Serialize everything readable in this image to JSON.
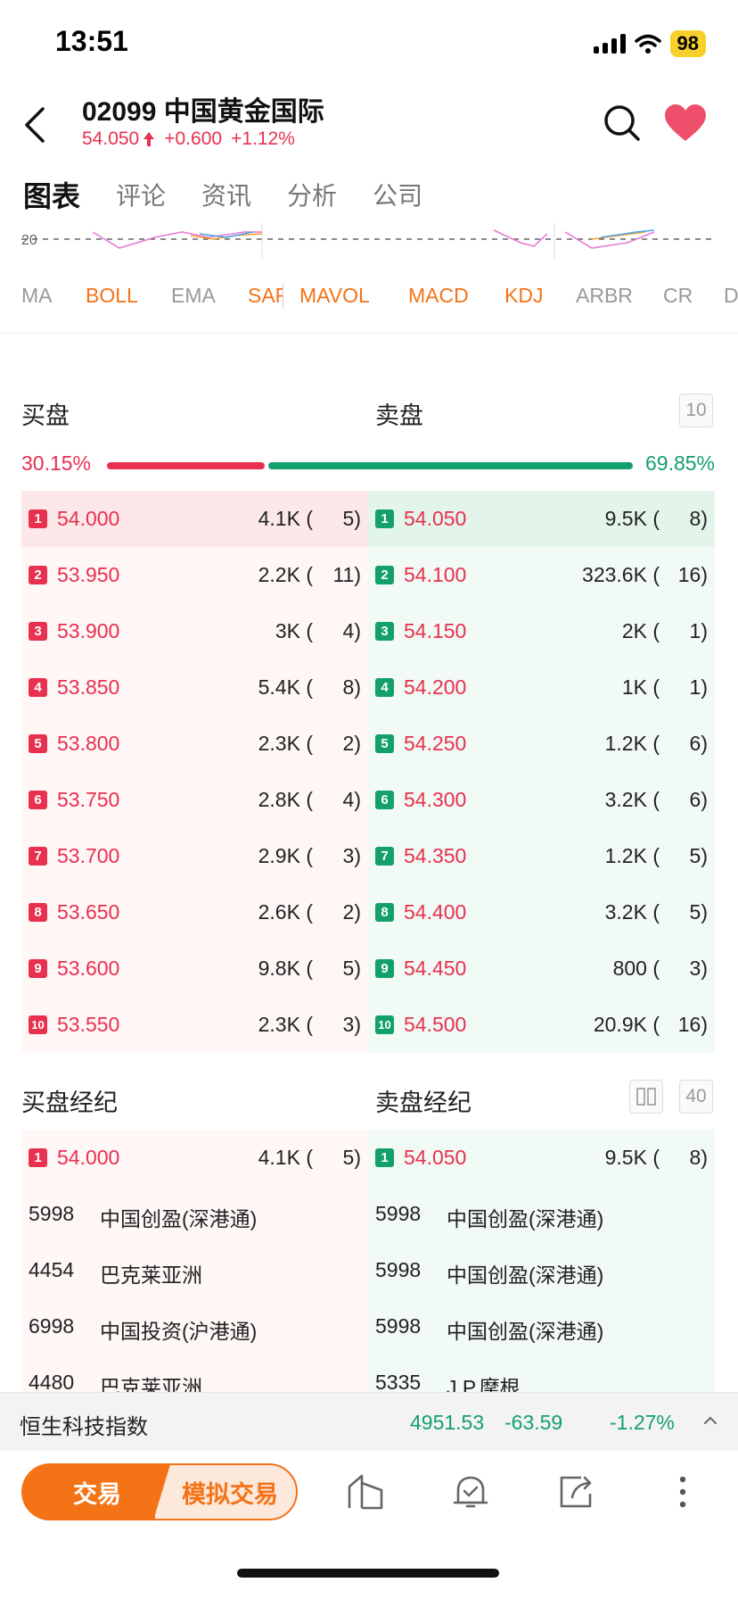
{
  "status": {
    "time": "13:51",
    "battery": "98"
  },
  "header": {
    "title": "02099  中国黄金国际",
    "price": "54.050",
    "change": "+0.600",
    "change_pct": "+1.12%"
  },
  "tabs": [
    "图表",
    "评论",
    "资讯",
    "分析",
    "公司"
  ],
  "chart_strip": {
    "axis_label": "20"
  },
  "indicators": [
    {
      "label": "MA",
      "active": false
    },
    {
      "label": "BOLL",
      "active": true
    },
    {
      "label": "EMA",
      "active": false
    },
    {
      "label": "SAR",
      "active": true
    },
    {
      "label": "MAVOL",
      "active": true
    },
    {
      "label": "MACD",
      "active": true
    },
    {
      "label": "KDJ",
      "active": true
    },
    {
      "label": "ARBR",
      "active": false
    },
    {
      "label": "CR",
      "active": false
    },
    {
      "label": "D",
      "active": false
    }
  ],
  "order_book": {
    "bid_title": "买盘",
    "ask_title": "卖盘",
    "depth_button": "10",
    "bid_pct": "30.15%",
    "ask_pct": "69.85%",
    "bid_ratio": 0.3015,
    "bids": [
      {
        "level": "1",
        "price": "54.000",
        "vol": "4.1K (",
        "cnt": "5)"
      },
      {
        "level": "2",
        "price": "53.950",
        "vol": "2.2K (",
        "cnt": "11)"
      },
      {
        "level": "3",
        "price": "53.900",
        "vol": "3K (",
        "cnt": "4)"
      },
      {
        "level": "4",
        "price": "53.850",
        "vol": "5.4K (",
        "cnt": "8)"
      },
      {
        "level": "5",
        "price": "53.800",
        "vol": "2.3K (",
        "cnt": "2)"
      },
      {
        "level": "6",
        "price": "53.750",
        "vol": "2.8K (",
        "cnt": "4)"
      },
      {
        "level": "7",
        "price": "53.700",
        "vol": "2.9K (",
        "cnt": "3)"
      },
      {
        "level": "8",
        "price": "53.650",
        "vol": "2.6K (",
        "cnt": "2)"
      },
      {
        "level": "9",
        "price": "53.600",
        "vol": "9.8K (",
        "cnt": "5)"
      },
      {
        "level": "10",
        "price": "53.550",
        "vol": "2.3K (",
        "cnt": "3)"
      }
    ],
    "asks": [
      {
        "level": "1",
        "price": "54.050",
        "vol": "9.5K (",
        "cnt": "8)"
      },
      {
        "level": "2",
        "price": "54.100",
        "vol": "323.6K (",
        "cnt": "16)"
      },
      {
        "level": "3",
        "price": "54.150",
        "vol": "2K (",
        "cnt": "1)"
      },
      {
        "level": "4",
        "price": "54.200",
        "vol": "1K (",
        "cnt": "1)"
      },
      {
        "level": "5",
        "price": "54.250",
        "vol": "1.2K (",
        "cnt": "6)"
      },
      {
        "level": "6",
        "price": "54.300",
        "vol": "3.2K (",
        "cnt": "6)"
      },
      {
        "level": "7",
        "price": "54.350",
        "vol": "1.2K (",
        "cnt": "5)"
      },
      {
        "level": "8",
        "price": "54.400",
        "vol": "3.2K (",
        "cnt": "5)"
      },
      {
        "level": "9",
        "price": "54.450",
        "vol": "800 (",
        "cnt": "3)"
      },
      {
        "level": "10",
        "price": "54.500",
        "vol": "20.9K (",
        "cnt": "16)"
      }
    ]
  },
  "brokers": {
    "bid_title": "买盘经纪",
    "ask_title": "卖盘经纪",
    "depth_button": "40",
    "bid_top": {
      "level": "1",
      "price": "54.000",
      "vol": "4.1K (",
      "cnt": "5)"
    },
    "ask_top": {
      "level": "1",
      "price": "54.050",
      "vol": "9.5K (",
      "cnt": "8)"
    },
    "bid_list": [
      {
        "code": "5998",
        "name": "中国创盈(深港通)"
      },
      {
        "code": "4454",
        "name": "巴克莱亚洲"
      },
      {
        "code": "6998",
        "name": "中国投资(沪港通)"
      },
      {
        "code": "4480",
        "name": "巴克莱亚洲"
      }
    ],
    "ask_list": [
      {
        "code": "5998",
        "name": "中国创盈(深港通)"
      },
      {
        "code": "5998",
        "name": "中国创盈(深港通)"
      },
      {
        "code": "5998",
        "name": "中国创盈(深港通)"
      },
      {
        "code": "5335",
        "name": "J.P.摩根"
      }
    ]
  },
  "index_bar": {
    "name": "恒生科技指数",
    "value": "4951.53",
    "change": "-63.59",
    "change_pct": "-1.27%"
  },
  "toolbar": {
    "trade": "交易",
    "sim_trade": "模拟交易"
  },
  "colors": {
    "up": "#e8304f",
    "down": "#14a06b",
    "accent": "#f47317"
  }
}
